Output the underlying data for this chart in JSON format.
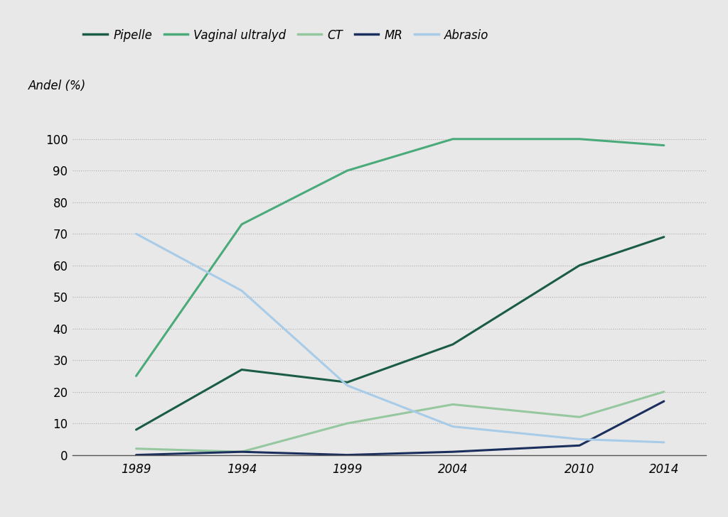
{
  "ylabel": "Andel (%)",
  "background_color": "#e8e8e8",
  "x_ticks": [
    1989,
    1994,
    1999,
    2004,
    2010,
    2014
  ],
  "series": [
    {
      "name": "Pipelle",
      "color": "#1a5c45",
      "linewidth": 2.2,
      "x": [
        1989,
        1994,
        1999,
        2004,
        2010,
        2014
      ],
      "y": [
        8,
        27,
        23,
        35,
        60,
        69
      ]
    },
    {
      "name": "Vaginal ultralyd",
      "color": "#4aaa7a",
      "linewidth": 2.2,
      "x": [
        1989,
        1994,
        1999,
        2004,
        2010,
        2014
      ],
      "y": [
        25,
        73,
        90,
        100,
        100,
        98
      ]
    },
    {
      "name": "CT",
      "color": "#96c8a0",
      "linewidth": 2.2,
      "x": [
        1989,
        1994,
        1999,
        2004,
        2010,
        2014
      ],
      "y": [
        2,
        1,
        10,
        16,
        12,
        20
      ]
    },
    {
      "name": "MR",
      "color": "#1a2f5e",
      "linewidth": 2.2,
      "x": [
        1989,
        1994,
        1999,
        2004,
        2010,
        2014
      ],
      "y": [
        0,
        1,
        0,
        1,
        3,
        17
      ]
    },
    {
      "name": "Abrasio",
      "color": "#a8cce8",
      "linewidth": 2.2,
      "x": [
        1989,
        1994,
        1999,
        2004,
        2010,
        2014
      ],
      "y": [
        70,
        52,
        22,
        9,
        5,
        4
      ]
    }
  ],
  "ylim": [
    0,
    108
  ],
  "yticks": [
    0,
    10,
    20,
    30,
    40,
    50,
    60,
    70,
    80,
    90,
    100
  ],
  "xlim": [
    1986,
    2016
  ],
  "grid_color": "#aaaaaa",
  "grid_style": ":"
}
